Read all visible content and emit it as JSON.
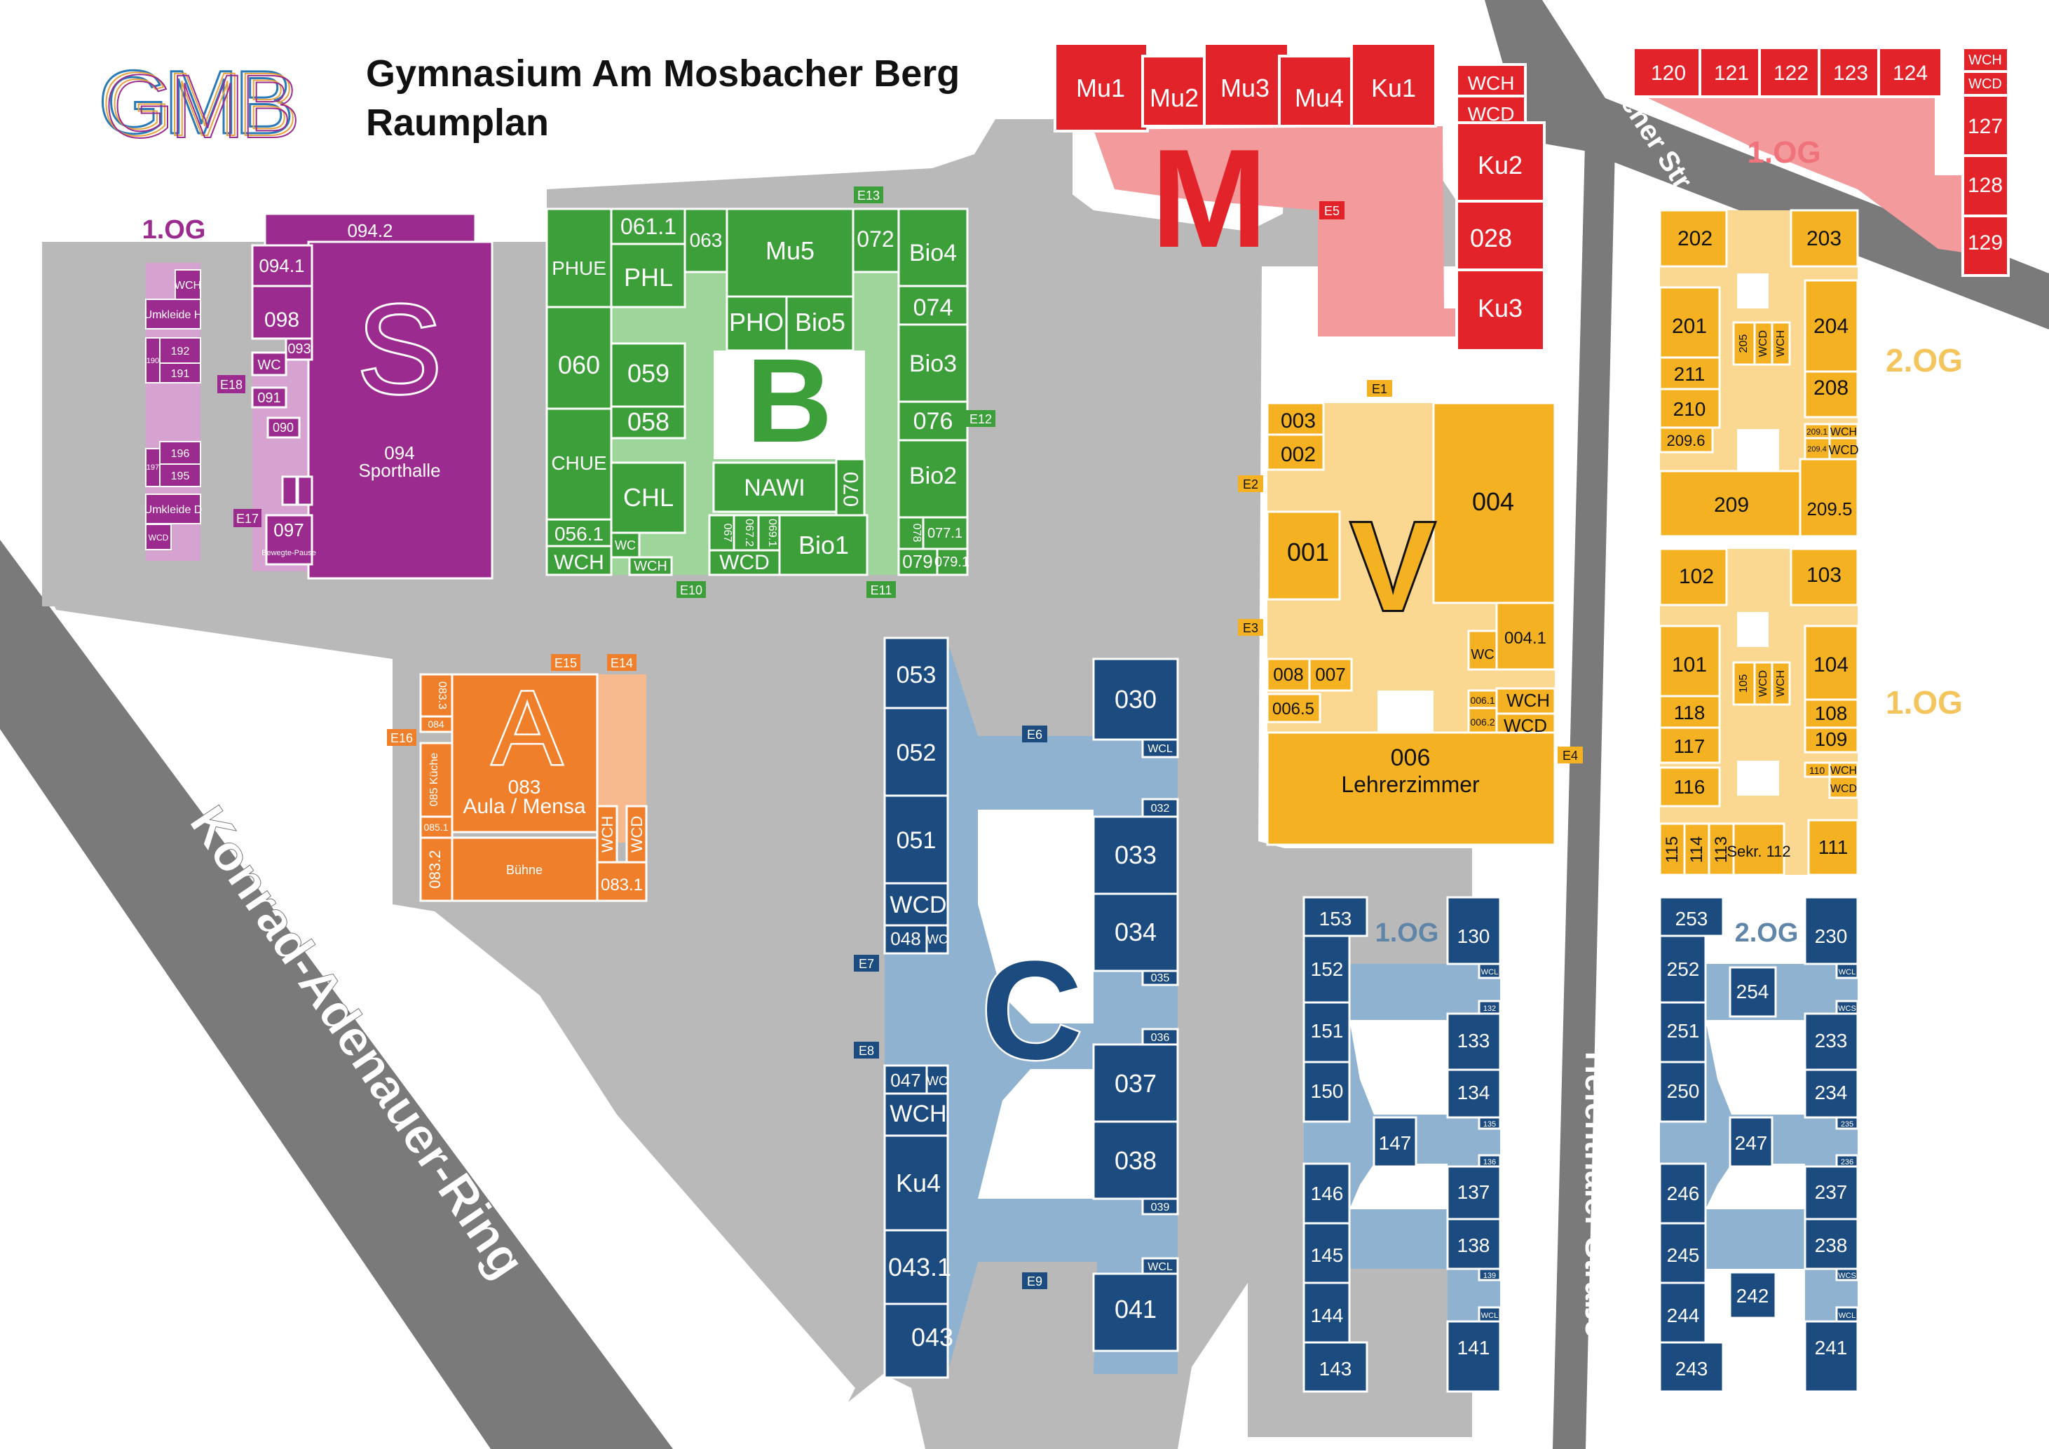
{
  "header": {
    "logo_text": "GMB",
    "school_name": "Gymnasium Am Mosbacher Berg",
    "subtitle": "Raumplan"
  },
  "colors": {
    "road": "#7a7a7a",
    "yard": "#b9b9b9",
    "music": "#e3232a",
    "music_light": "#f39a9d",
    "sport": "#9b2b8e",
    "sport_light": "#d6a2cf",
    "bio": "#3c9f3a",
    "bio_light": "#9ed59a",
    "aula": "#f07f2c",
    "aula_light": "#f7b98e",
    "admin": "#f4b223",
    "admin_light": "#fad891",
    "classes": "#1c4b7f",
    "classes_light": "#8eb2cf"
  },
  "streets": {
    "konrad": "Konrad-Adenauer-Ring",
    "mosbacher": "Mosbacher Str.",
    "tiefenthaler": "Tiefenthaler Straße"
  },
  "building_letters": {
    "m": "M",
    "s": "S",
    "b": "B",
    "a": "A",
    "v": "V",
    "c": "C"
  },
  "floor_labels": {
    "sport_1og": "1.OG",
    "music_1og": "1.OG",
    "admin_2og": "2.OG",
    "admin_1og": "1.OG",
    "class_1og": "1.OG",
    "class_2og": "2.OG"
  },
  "entrances": {
    "e1": "E1",
    "e2": "E2",
    "e3": "E3",
    "e4": "E4",
    "e5": "E5",
    "e6": "E6",
    "e7": "E7",
    "e8": "E8",
    "e9": "E9",
    "e10": "E10",
    "e11": "E11",
    "e12": "E12",
    "e13": "E13",
    "e14": "E14",
    "e15": "E15",
    "e16": "E16",
    "e17": "E17",
    "e18": "E18"
  },
  "rooms": {
    "mu1": "Mu1",
    "mu2": "Mu2",
    "mu3": "Mu3",
    "mu4": "Mu4",
    "ku1": "Ku1",
    "ku2": "Ku2",
    "r028": "028",
    "ku3": "Ku3",
    "wch_m": "WCH",
    "wcd_m": "WCD",
    "r120": "120",
    "r121": "121",
    "r122": "122",
    "r123": "123",
    "r124": "124",
    "r127": "127",
    "r128": "128",
    "r129": "129",
    "wch_m1": "WCH",
    "wcd_m1": "WCD",
    "r094_2": "094.2",
    "r094_1": "094.1",
    "r098": "098",
    "r093": "093",
    "wc_s": "WC",
    "r091": "091",
    "r090": "090",
    "r097": "097",
    "bewegte": "Bewegte-Pause",
    "r094": "094",
    "sporthalle": "Sporthalle",
    "wch_s1": "WCH",
    "umkleide_h": "Umkleide H",
    "r192": "192",
    "r191": "191",
    "r190": "190",
    "r196": "196",
    "r195": "195",
    "r197": "197",
    "umkleide_d": "Umkleide D",
    "wcd_s1": "WCD",
    "phue": "PHUE",
    "r061_1": "061.1",
    "r063": "063",
    "mu5": "Mu5",
    "r072": "072",
    "bio4": "Bio4",
    "phl": "PHL",
    "pho": "PHO",
    "bio5": "Bio5",
    "r074": "074",
    "r060": "060",
    "r059": "059",
    "bio3": "Bio3",
    "r058": "058",
    "r076": "076",
    "chue": "CHUE",
    "chl": "CHL",
    "nawi": "NAWI",
    "r070": "070",
    "bio2": "Bio2",
    "r056_1": "056.1",
    "wc_b": "WC",
    "wch_b1": "WCH",
    "wch_b2": "WCH",
    "r067": "067",
    "r067_2": "067.2",
    "r069_1": "069.1",
    "wcd_b": "WCD",
    "bio1": "Bio1",
    "r078": "078",
    "r077_1": "077.1",
    "r079": "079",
    "r079_1": "079.1",
    "r083_3": "083.3",
    "r084": "084",
    "r085": "085 Küche",
    "r085_1": "085.1",
    "r083_2": "083.2",
    "r083": "083",
    "aula": "Aula / Mensa",
    "buehne": "Bühne",
    "wch_a": "WCH",
    "wcd_a": "WCD",
    "r083_1": "083.1",
    "r003": "003",
    "r002": "002",
    "r001": "001",
    "r004": "004",
    "r004_1": "004.1",
    "wc_v": "WC",
    "r008": "008",
    "r007": "007",
    "r006_5": "006.5",
    "r006_1": "006.1",
    "r006_2": "006.2",
    "wch_v": "WCH",
    "wcd_v": "WCD",
    "r006": "006",
    "lehrer": "Lehrerzimmer",
    "r202": "202",
    "r203": "203",
    "r201": "201",
    "r204": "204",
    "r205": "205",
    "wcd_2": "WCD",
    "wch_2": "WCH",
    "r211": "211",
    "r210": "210",
    "r208": "208",
    "r209_1": "209.1",
    "wch_2b": "WCH",
    "r209_6": "209.6",
    "r209_4": "209.4",
    "wcd_2b": "WCD",
    "r209": "209",
    "r209_5": "209.5",
    "r102": "102",
    "r103": "103",
    "r101": "101",
    "r104": "104",
    "r105": "105",
    "wcd_1": "WCD",
    "wch_1": "WCH",
    "r118": "118",
    "r108": "108",
    "r117": "117",
    "r109": "109",
    "r110": "110",
    "wch_1b": "WCH",
    "r116": "116",
    "wcd_1b": "WCD",
    "r115": "115",
    "r114": "114",
    "r113": "113",
    "sekr": "Sekr. 112",
    "r111": "111",
    "r053": "053",
    "r030": "030",
    "r052": "052",
    "wcl_c1": "WCL",
    "r032": "032",
    "r051": "051",
    "r033": "033",
    "wcd_c": "WCD",
    "r048": "048",
    "wc_c1": "WC",
    "r034": "034",
    "r035": "035",
    "r036": "036",
    "r047": "047",
    "wc_c2": "WC",
    "r037": "037",
    "wch_c": "WCH",
    "ku4": "Ku4",
    "r038": "038",
    "r039": "039",
    "r043_1": "043.1",
    "wcl_c2": "WCL",
    "r041": "041",
    "r043": "043",
    "r153": "153",
    "r130": "130",
    "r152": "152",
    "r132": "132",
    "wcl_11": "WCL",
    "r151": "151",
    "r133": "133",
    "r150": "150",
    "r134": "134",
    "r135": "135",
    "r147": "147",
    "r136": "136",
    "r146": "146",
    "r137": "137",
    "r145": "145",
    "r138": "138",
    "r139": "139",
    "r144": "144",
    "wcl_12": "WCL",
    "r141": "141",
    "r143": "143",
    "r253": "253",
    "r230": "230",
    "r252": "252",
    "r254": "254",
    "wcl_21": "WCL",
    "wcs_21": "WCS",
    "r251": "251",
    "r233": "233",
    "r250": "250",
    "r234": "234",
    "r235": "235",
    "r247": "247",
    "r236": "236",
    "r246": "246",
    "r237": "237",
    "r245": "245",
    "r238": "238",
    "wcs_22": "WCS",
    "r242": "242",
    "r244": "244",
    "wcl_22": "WCL",
    "r241": "241",
    "r243": "243"
  }
}
